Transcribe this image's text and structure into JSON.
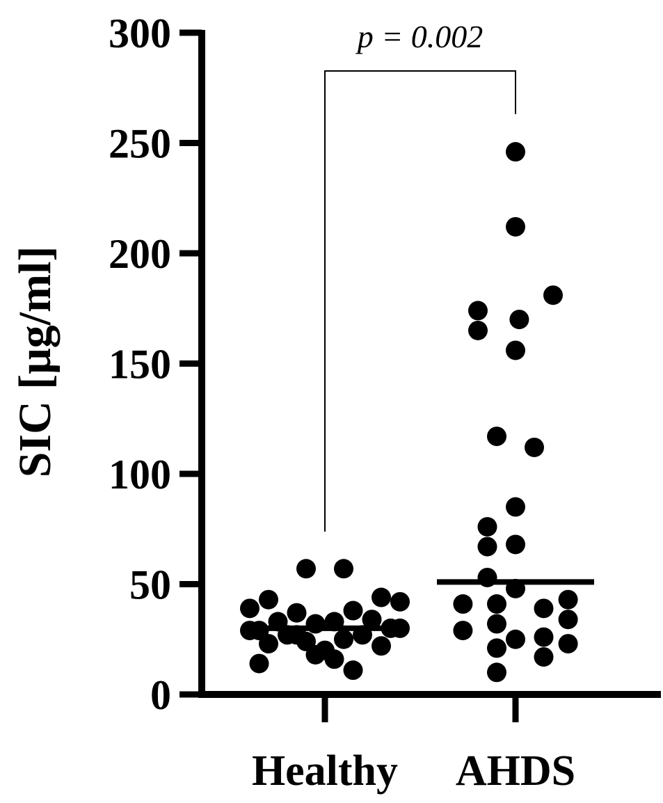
{
  "chart_data": {
    "type": "scatter",
    "ylabel": "SIC [μg/ml]",
    "xlabel": "",
    "title": "",
    "ylim": [
      0,
      300
    ],
    "yticks": [
      0,
      50,
      100,
      150,
      200,
      250,
      300
    ],
    "categories": [
      "Healthy",
      "AHDS"
    ],
    "annotation": {
      "text": "p = 0.002",
      "between": [
        "Healthy",
        "AHDS"
      ]
    },
    "point_color": "#000000",
    "series": [
      {
        "category": "Healthy",
        "median": 30,
        "points": [
          {
            "offset": -0.1,
            "value": 57
          },
          {
            "offset": 0.1,
            "value": 57
          },
          {
            "offset": -0.4,
            "value": 39
          },
          {
            "offset": 0.4,
            "value": 42
          },
          {
            "offset": -0.3,
            "value": 43
          },
          {
            "offset": 0.3,
            "value": 44
          },
          {
            "offset": -0.15,
            "value": 37
          },
          {
            "offset": 0.15,
            "value": 38
          },
          {
            "offset": -0.25,
            "value": 33
          },
          {
            "offset": 0.25,
            "value": 34
          },
          {
            "offset": -0.05,
            "value": 32
          },
          {
            "offset": 0.05,
            "value": 33
          },
          {
            "offset": -0.35,
            "value": 29
          },
          {
            "offset": 0.35,
            "value": 30
          },
          {
            "offset": -0.2,
            "value": 27
          },
          {
            "offset": 0.2,
            "value": 27
          },
          {
            "offset": -0.1,
            "value": 24
          },
          {
            "offset": 0.1,
            "value": 25
          },
          {
            "offset": -0.3,
            "value": 23
          },
          {
            "offset": 0.3,
            "value": 22
          },
          {
            "offset": -0.4,
            "value": 29
          },
          {
            "offset": 0.4,
            "value": 30
          },
          {
            "offset": 0.05,
            "value": 16
          },
          {
            "offset": -0.05,
            "value": 18
          },
          {
            "offset": -0.35,
            "value": 14
          },
          {
            "offset": 0.15,
            "value": 11
          },
          {
            "offset": 0.0,
            "value": 20
          },
          {
            "offset": -0.15,
            "value": 27
          }
        ]
      },
      {
        "category": "AHDS",
        "median": 51,
        "points": [
          {
            "offset": 0.0,
            "value": 246
          },
          {
            "offset": 0.0,
            "value": 212
          },
          {
            "offset": 0.2,
            "value": 181
          },
          {
            "offset": -0.2,
            "value": 174
          },
          {
            "offset": 0.02,
            "value": 170
          },
          {
            "offset": -0.2,
            "value": 165
          },
          {
            "offset": 0.0,
            "value": 156
          },
          {
            "offset": -0.1,
            "value": 117
          },
          {
            "offset": 0.1,
            "value": 112
          },
          {
            "offset": 0.0,
            "value": 85
          },
          {
            "offset": -0.15,
            "value": 76
          },
          {
            "offset": 0.0,
            "value": 68
          },
          {
            "offset": -0.15,
            "value": 67
          },
          {
            "offset": -0.15,
            "value": 53
          },
          {
            "offset": 0.0,
            "value": 48
          },
          {
            "offset": -0.28,
            "value": 41
          },
          {
            "offset": -0.1,
            "value": 41
          },
          {
            "offset": 0.28,
            "value": 43
          },
          {
            "offset": 0.15,
            "value": 39
          },
          {
            "offset": -0.1,
            "value": 32
          },
          {
            "offset": 0.28,
            "value": 34
          },
          {
            "offset": -0.28,
            "value": 29
          },
          {
            "offset": 0.15,
            "value": 26
          },
          {
            "offset": 0.0,
            "value": 25
          },
          {
            "offset": 0.28,
            "value": 23
          },
          {
            "offset": -0.1,
            "value": 21
          },
          {
            "offset": 0.15,
            "value": 17
          },
          {
            "offset": -0.1,
            "value": 10
          }
        ]
      }
    ]
  }
}
